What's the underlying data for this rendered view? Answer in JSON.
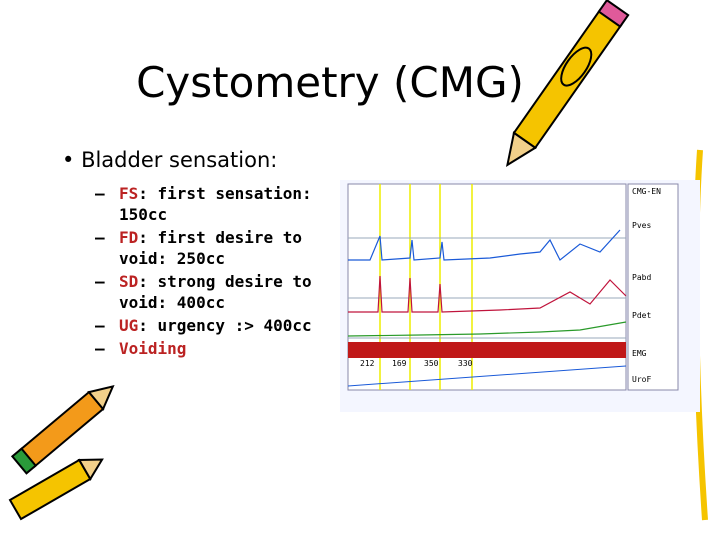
{
  "title": "Cystometry (CMG)",
  "bullets": [
    {
      "text": "Bladder sensation:",
      "items": [
        {
          "term": "FS",
          "text": ": first sensation: 150cc"
        },
        {
          "term": "FD",
          "text": ": first desire to void: 250cc"
        },
        {
          "term": "SD",
          "text": ": strong desire to void: 400cc"
        },
        {
          "term": "UG",
          "text": ": urgency :> 400cc"
        },
        {
          "term": "Voiding"
        }
      ]
    }
  ],
  "tracing": {
    "header": "CMG-EN",
    "channels": [
      "Pves",
      "Pabd",
      "Pdet",
      "EMG",
      "UroF"
    ],
    "markers": [
      "212",
      "169",
      "350",
      "330"
    ]
  }
}
